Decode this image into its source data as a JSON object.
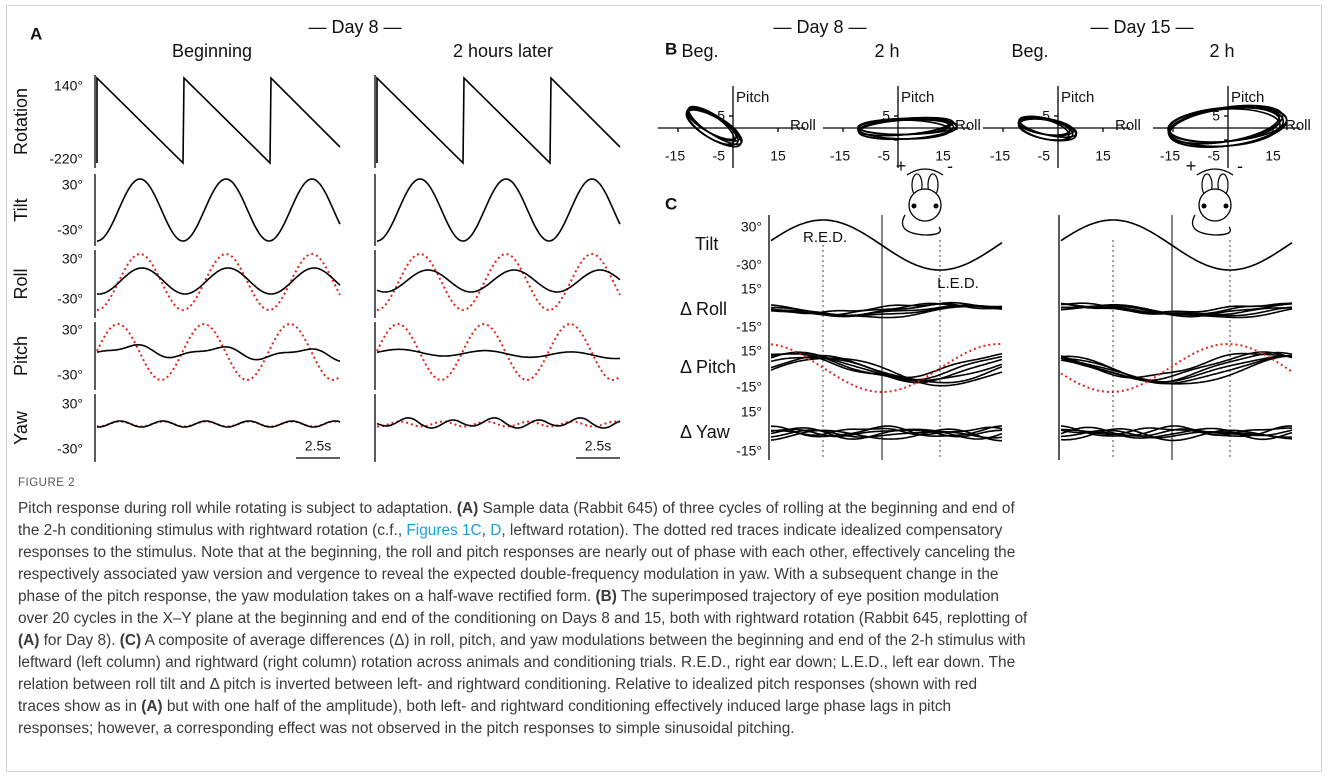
{
  "panel_a": {
    "label": "A",
    "title": "— Day 8 —",
    "columns": [
      "Beginning",
      "2 hours later"
    ],
    "rows": [
      {
        "name": "Rotation",
        "ticks": [
          "140°",
          "-220°"
        ]
      },
      {
        "name": "Tilt",
        "ticks": [
          "30°",
          "-30°"
        ]
      },
      {
        "name": "Roll",
        "ticks": [
          "30°",
          "-30°"
        ]
      },
      {
        "name": "Pitch",
        "ticks": [
          "30°",
          "-30°"
        ]
      },
      {
        "name": "Yaw",
        "ticks": [
          "30°",
          "-30°"
        ]
      }
    ],
    "scale_bars": [
      "2.5s",
      "2.5s"
    ]
  },
  "panel_b": {
    "label": "B",
    "titles": [
      "— Day 8 —",
      "— Day 15 —"
    ],
    "plots": [
      {
        "title": "Beg.",
        "y_label": "Pitch",
        "x_label": "Roll",
        "x_ticks": [
          "-15",
          "15"
        ],
        "y_ticks": [
          "5",
          "-5"
        ]
      },
      {
        "title": "2 h",
        "y_label": "Pitch",
        "x_label": "Roll",
        "x_ticks": [
          "-15",
          "15"
        ],
        "y_ticks": [
          "5",
          "-5"
        ]
      },
      {
        "title": "Beg.",
        "y_label": "Pitch",
        "x_label": "Roll",
        "x_ticks": [
          "-15",
          "15"
        ],
        "y_ticks": [
          "5",
          "-5"
        ]
      },
      {
        "title": "2 h",
        "y_label": "Pitch",
        "x_label": "Roll",
        "x_ticks": [
          "-15",
          "15"
        ],
        "y_ticks": [
          "5",
          "-5"
        ]
      }
    ]
  },
  "panel_c": {
    "label": "C",
    "rows": [
      {
        "name": "Tilt",
        "ticks": [
          "30°",
          "-30°"
        ]
      },
      {
        "name": "Δ Roll",
        "ticks": [
          "15°",
          "-15°"
        ]
      },
      {
        "name": "Δ Pitch",
        "ticks": [
          "15°",
          "-15°"
        ]
      },
      {
        "name": "Δ Yaw",
        "ticks": [
          "15°",
          "-15°"
        ]
      }
    ],
    "annotations": [
      "R.E.D.",
      "L.E.D."
    ],
    "icons": [
      [
        "+",
        "-"
      ],
      [
        "+",
        "-"
      ]
    ]
  },
  "caption": {
    "label": "FIGURE 2",
    "lines": [
      [
        {
          "text": "Pitch response during roll while rotating is subject to adaptation. "
        },
        {
          "text": "(A)",
          "style": "bold"
        },
        {
          "text": " Sample data (Rabbit 645) of three cycles of rolling at the beginning and end of"
        }
      ],
      [
        {
          "text": "the 2-h conditioning stimulus with rightward rotation (c.f., "
        },
        {
          "text": "Figures 1C",
          "style": "link"
        },
        {
          "text": ", "
        },
        {
          "text": "D",
          "style": "link"
        },
        {
          "text": ", leftward rotation). The dotted red traces indicate idealized compensatory"
        }
      ],
      [
        {
          "text": "responses to the stimulus. Note that at the beginning, the roll and pitch responses are nearly out of phase with each other, effectively canceling the"
        }
      ],
      [
        {
          "text": "respectively associated yaw version and vergence to reveal the expected double-frequency modulation in yaw. With a subsequent change in the"
        }
      ],
      [
        {
          "text": "phase of the pitch response, the yaw modulation takes on a half-wave rectified form. "
        },
        {
          "text": "(B)",
          "style": "bold"
        },
        {
          "text": " The superimposed trajectory of eye position modulation"
        }
      ],
      [
        {
          "text": "over 20 cycles in the X–Y plane at the beginning and end of the conditioning on Days 8 and 15, both with rightward rotation (Rabbit 645, replotting of"
        }
      ],
      [
        {
          "text": "(A)",
          "style": "bold"
        },
        {
          "text": " for Day 8). "
        },
        {
          "text": "(C)",
          "style": "bold"
        },
        {
          "text": " A composite of average differences (Δ) in roll, pitch, and yaw modulations between the beginning and end of the 2-h stimulus with"
        }
      ],
      [
        {
          "text": "leftward (left column) and rightward (right column) rotation across animals and conditioning trials. R.E.D., right ear down; L.E.D., left ear down. The"
        }
      ],
      [
        {
          "text": "relation between roll tilt and Δ pitch is inverted between left- and rightward conditioning. Relative to idealized pitch responses (shown with red"
        }
      ],
      [
        {
          "text": "traces show as in "
        },
        {
          "text": "(A)",
          "style": "bold"
        },
        {
          "text": " but with one half of the amplitude), both left- and rightward conditioning effectively induced large phase lags in pitch"
        }
      ],
      [
        {
          "text": "responses; however, a corresponding effect was not observed in the pitch responses to simple sinusoidal pitching."
        }
      ]
    ]
  }
}
